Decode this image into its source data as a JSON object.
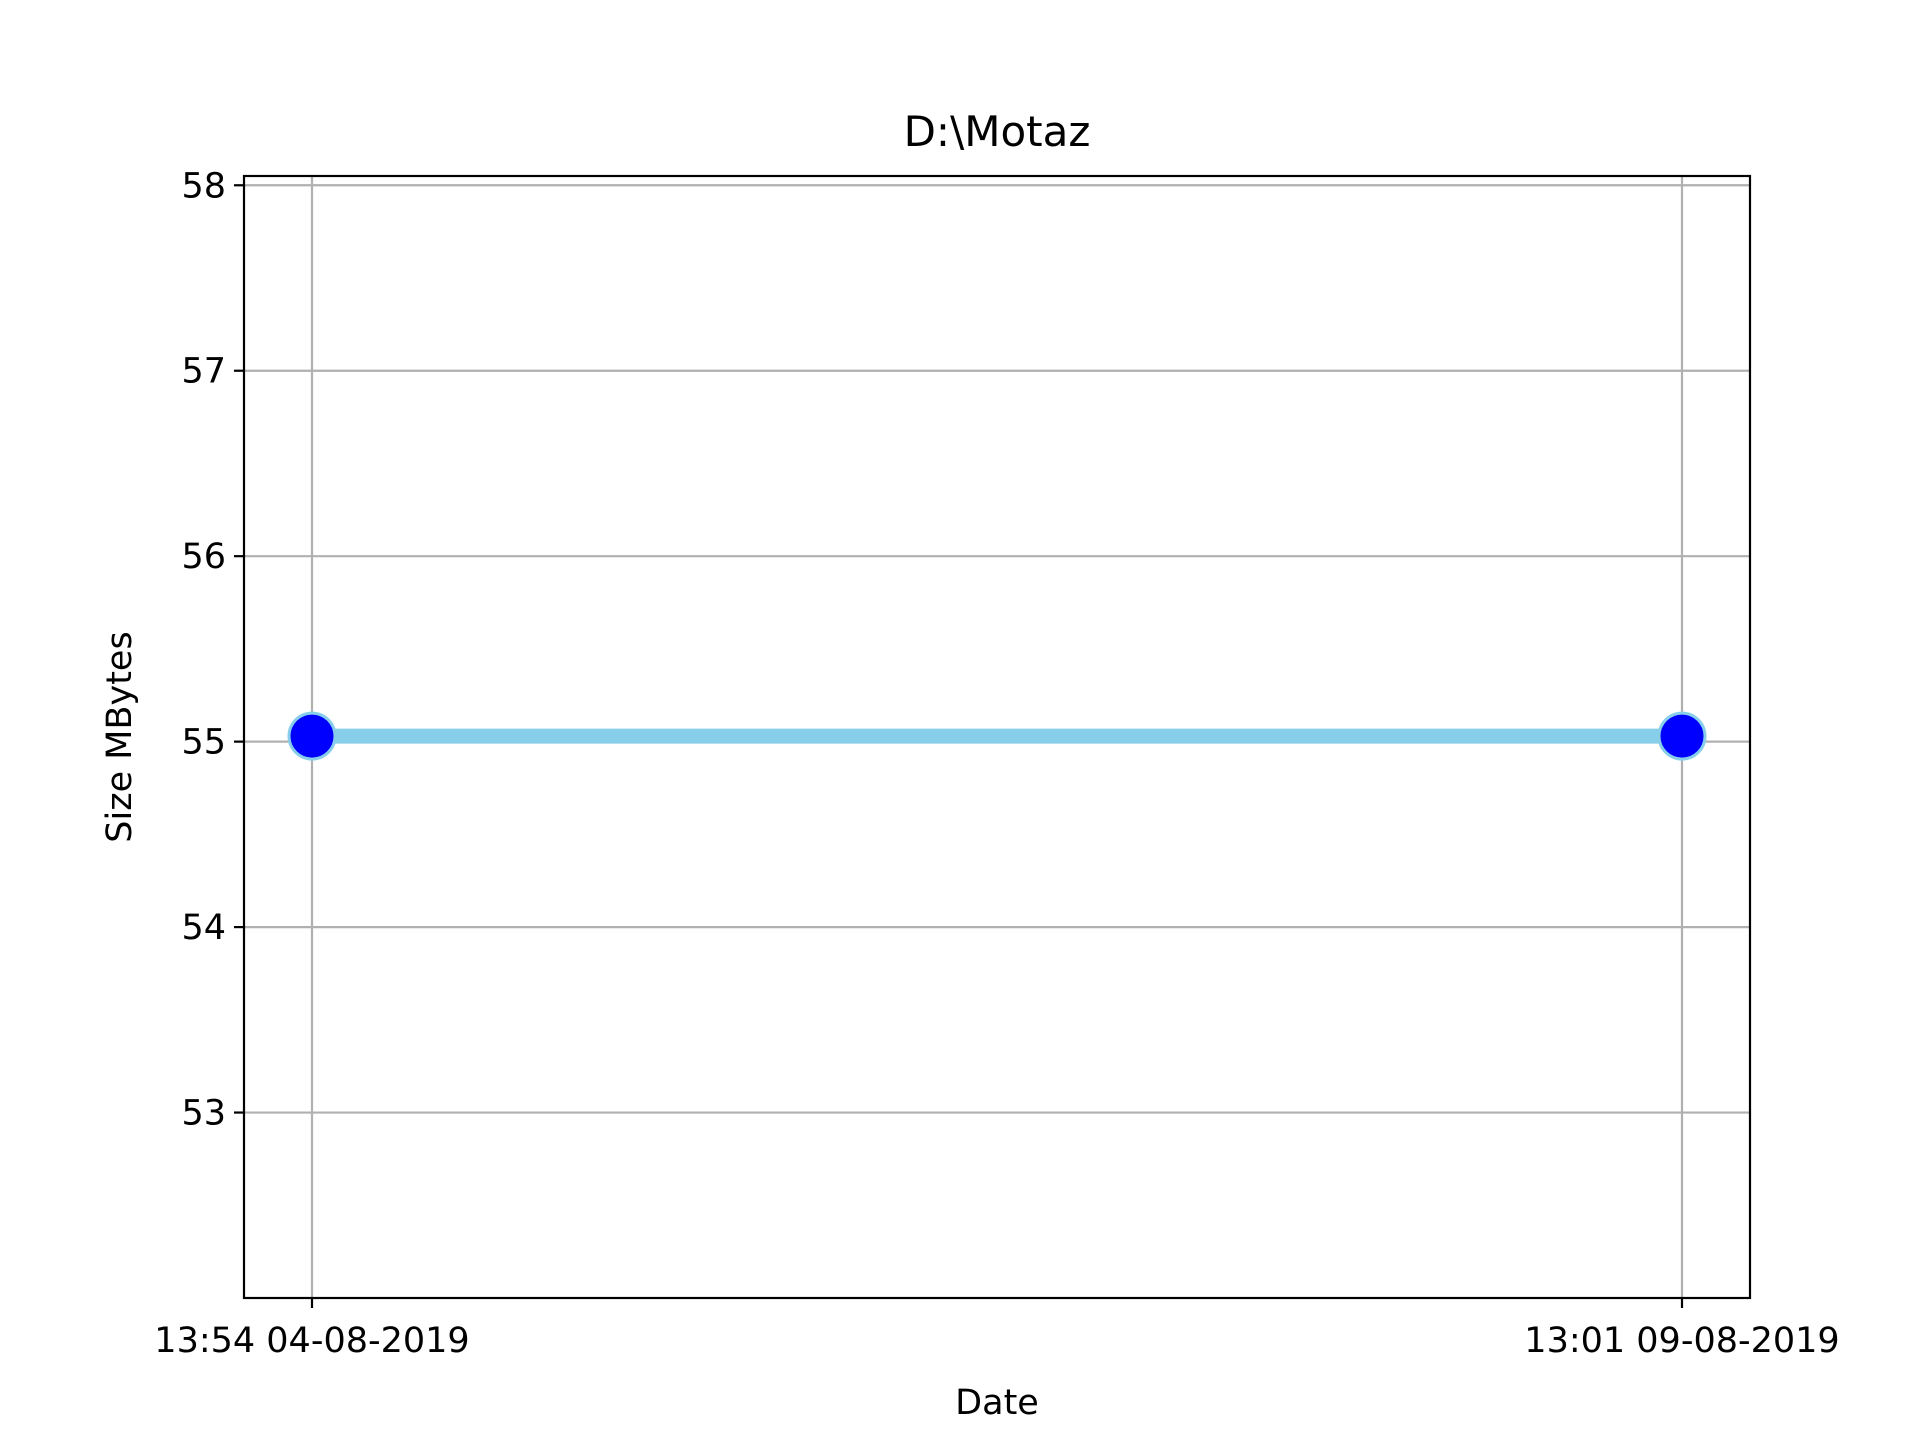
{
  "chart_data": {
    "type": "line",
    "title": "D:\\Motaz",
    "xlabel": "Date",
    "ylabel": "Size MBytes",
    "x": [
      "13:54 04-08-2019",
      "13:01 09-08-2019"
    ],
    "series": [
      {
        "values": [
          55.03,
          55.03
        ]
      }
    ],
    "yticks": [
      53,
      54,
      55,
      56,
      57,
      58
    ],
    "ylim": [
      52.0,
      58.05
    ],
    "grid": true,
    "line_color": "#87ceeb",
    "marker_face_color": "#0000ff",
    "marker_edge_color": "#87ceeb"
  }
}
